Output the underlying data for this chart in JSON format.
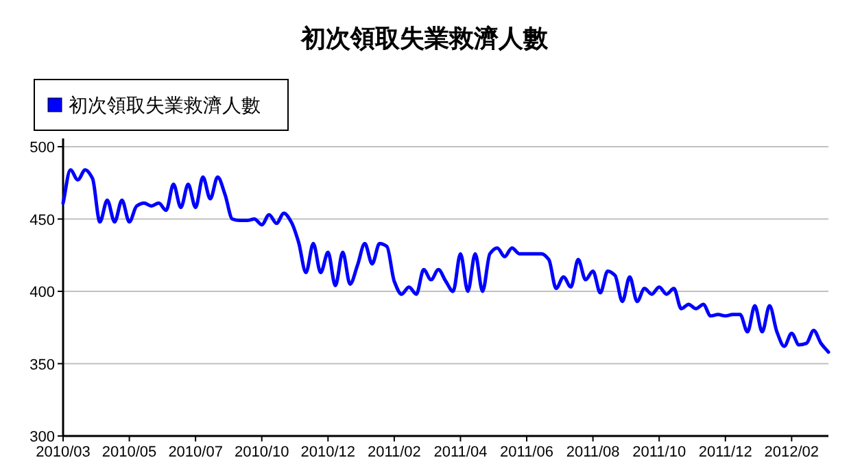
{
  "chart_data": {
    "type": "line",
    "title": "初次領取失業救濟人數",
    "categories": [
      "2010/03",
      null,
      null,
      null,
      null,
      null,
      null,
      null,
      null,
      "2010/05",
      null,
      null,
      null,
      null,
      null,
      null,
      null,
      null,
      "2010/07",
      null,
      null,
      null,
      null,
      null,
      null,
      null,
      null,
      "2010/10",
      null,
      null,
      null,
      null,
      null,
      null,
      null,
      null,
      "2010/12",
      null,
      null,
      null,
      null,
      null,
      null,
      null,
      null,
      "2011/02",
      null,
      null,
      null,
      null,
      null,
      null,
      null,
      null,
      "2011/04",
      null,
      null,
      null,
      null,
      null,
      null,
      null,
      null,
      "2011/06",
      null,
      null,
      null,
      null,
      null,
      null,
      null,
      null,
      "2011/08",
      null,
      null,
      null,
      null,
      null,
      null,
      null,
      null,
      "2011/10",
      null,
      null,
      null,
      null,
      null,
      null,
      null,
      null,
      "2011/12",
      null,
      null,
      null,
      null,
      null,
      null,
      null,
      null,
      "2012/02",
      null,
      null,
      null,
      null,
      null
    ],
    "series": [
      {
        "name": "初次領取失業救濟人數",
        "color": "#0000ff",
        "values": [
          461,
          484,
          477,
          484,
          478,
          448,
          463,
          448,
          463,
          448,
          459,
          461,
          459,
          461,
          456,
          474,
          458,
          474,
          458,
          479,
          464,
          479,
          467,
          450,
          449,
          449,
          450,
          446,
          453,
          447,
          454,
          448,
          434,
          413,
          433,
          413,
          427,
          404,
          427,
          405,
          418,
          433,
          419,
          433,
          431,
          407,
          398,
          403,
          398,
          415,
          408,
          415,
          407,
          400,
          426,
          400,
          426,
          400,
          426,
          430,
          424,
          430,
          426,
          426,
          426,
          426,
          422,
          402,
          410,
          403,
          422,
          408,
          414,
          399,
          414,
          411,
          393,
          410,
          393,
          402,
          398,
          403,
          398,
          402,
          388,
          391,
          388,
          391,
          383,
          384,
          383,
          384,
          384,
          372,
          390,
          372,
          390,
          372,
          362,
          371,
          363,
          364,
          373,
          364,
          358
        ]
      }
    ],
    "ylim": [
      300,
      500
    ],
    "yticks": [
      300,
      350,
      400,
      450,
      500
    ],
    "grid": "y",
    "legend": "top left",
    "marker": "none",
    "line_style": "solid"
  }
}
